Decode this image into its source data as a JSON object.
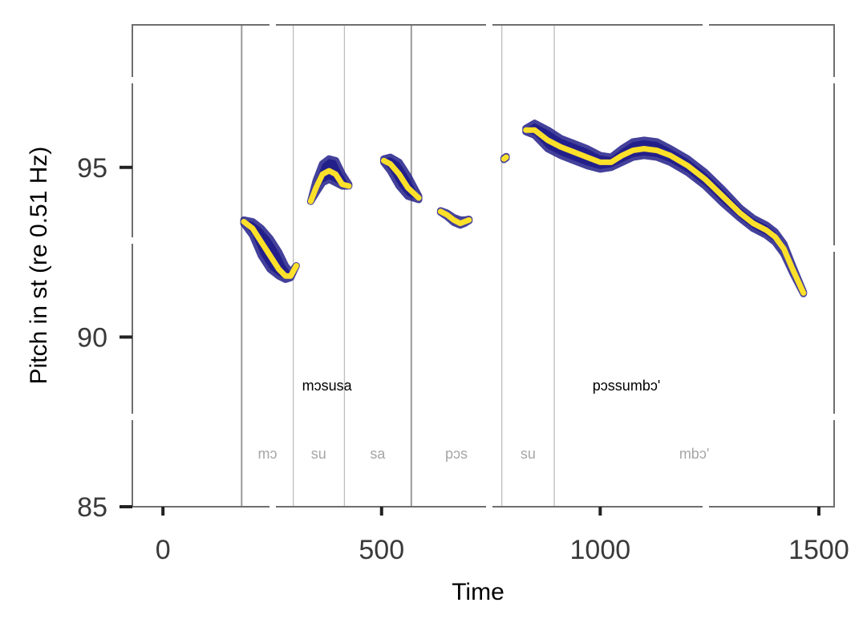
{
  "chart_data": {
    "type": "line",
    "xlabel": "Time",
    "ylabel": "Pitch in st (re 0.51 Hz)",
    "xlim": [
      -70,
      1535
    ],
    "ylim": [
      85,
      99.2
    ],
    "x_ticks": [
      0,
      500,
      1000,
      1500
    ],
    "y_ticks": [
      85,
      90,
      95
    ],
    "grid": false,
    "colors": {
      "band": "#23208a",
      "line": "#fde02a",
      "boundary": "#bdbdbd",
      "word_boundary": "#9a9a9a",
      "frame": "#6e6e6e"
    },
    "word_boundaries": [
      180,
      568
    ],
    "syllable_boundaries": [
      180,
      298,
      415,
      568,
      775,
      895
    ],
    "words": [
      {
        "label": "mɔsusa",
        "x": 375
      },
      {
        "label": "pɔssumbɔ'",
        "x": 1060
      }
    ],
    "syllables": [
      {
        "label": "mɔ",
        "x": 239
      },
      {
        "label": "su",
        "x": 356
      },
      {
        "label": "sa",
        "x": 491
      },
      {
        "label": "pɔs",
        "x": 671
      },
      {
        "label": "su",
        "x": 835
      },
      {
        "label": "mbɔ'",
        "x": 1215
      }
    ],
    "series": [
      {
        "points": [
          [
            185,
            93.4
          ],
          [
            205,
            93.2
          ],
          [
            225,
            92.8
          ],
          [
            245,
            92.4
          ],
          [
            265,
            92.0
          ],
          [
            280,
            91.8
          ],
          [
            292,
            91.8
          ],
          [
            305,
            92.1
          ]
        ],
        "upper": [
          [
            185,
            93.45
          ],
          [
            205,
            93.4
          ],
          [
            225,
            93.2
          ],
          [
            245,
            92.9
          ],
          [
            265,
            92.5
          ],
          [
            280,
            92.1
          ],
          [
            292,
            91.9
          ],
          [
            305,
            92.1
          ]
        ],
        "lower": [
          [
            185,
            93.35
          ],
          [
            205,
            93.0
          ],
          [
            225,
            92.4
          ],
          [
            245,
            92.0
          ],
          [
            265,
            91.8
          ],
          [
            280,
            91.7
          ],
          [
            292,
            91.75
          ],
          [
            305,
            92.1
          ]
        ]
      },
      {
        "points": [
          [
            338,
            94.0
          ],
          [
            350,
            94.4
          ],
          [
            365,
            94.8
          ],
          [
            380,
            94.9
          ],
          [
            395,
            94.8
          ],
          [
            410,
            94.5
          ],
          [
            425,
            94.45
          ]
        ],
        "upper": [
          [
            338,
            94.0
          ],
          [
            350,
            94.6
          ],
          [
            365,
            95.1
          ],
          [
            380,
            95.25
          ],
          [
            395,
            95.2
          ],
          [
            410,
            94.8
          ],
          [
            425,
            94.5
          ]
        ],
        "lower": [
          [
            338,
            94.0
          ],
          [
            350,
            94.25
          ],
          [
            365,
            94.55
          ],
          [
            380,
            94.65
          ],
          [
            395,
            94.55
          ],
          [
            410,
            94.45
          ],
          [
            425,
            94.45
          ]
        ]
      },
      {
        "points": [
          [
            505,
            95.2
          ],
          [
            520,
            95.1
          ],
          [
            540,
            94.8
          ],
          [
            560,
            94.4
          ],
          [
            585,
            94.1
          ]
        ],
        "upper": [
          [
            505,
            95.25
          ],
          [
            520,
            95.3
          ],
          [
            540,
            95.15
          ],
          [
            560,
            94.75
          ],
          [
            585,
            94.15
          ]
        ],
        "lower": [
          [
            505,
            95.15
          ],
          [
            520,
            94.9
          ],
          [
            540,
            94.45
          ],
          [
            560,
            94.15
          ],
          [
            585,
            94.05
          ]
        ]
      },
      {
        "points": [
          [
            635,
            93.7
          ],
          [
            650,
            93.6
          ],
          [
            665,
            93.45
          ],
          [
            680,
            93.35
          ],
          [
            690,
            93.4
          ],
          [
            700,
            93.45
          ]
        ],
        "upper": [
          [
            635,
            93.72
          ],
          [
            650,
            93.65
          ],
          [
            665,
            93.52
          ],
          [
            680,
            93.45
          ],
          [
            690,
            93.45
          ],
          [
            700,
            93.47
          ]
        ],
        "lower": [
          [
            635,
            93.68
          ],
          [
            650,
            93.55
          ],
          [
            665,
            93.38
          ],
          [
            680,
            93.3
          ],
          [
            690,
            93.35
          ],
          [
            700,
            93.43
          ]
        ]
      },
      {
        "points": [
          [
            780,
            95.25
          ],
          [
            785,
            95.3
          ]
        ],
        "upper": [
          [
            780,
            95.27
          ],
          [
            785,
            95.32
          ]
        ],
        "lower": [
          [
            780,
            95.23
          ],
          [
            785,
            95.28
          ]
        ]
      },
      {
        "points": [
          [
            830,
            96.1
          ],
          [
            850,
            96.1
          ],
          [
            880,
            95.8
          ],
          [
            910,
            95.6
          ],
          [
            940,
            95.45
          ],
          [
            970,
            95.3
          ],
          [
            1000,
            95.15
          ],
          [
            1025,
            95.15
          ],
          [
            1050,
            95.35
          ],
          [
            1075,
            95.5
          ],
          [
            1100,
            95.55
          ],
          [
            1130,
            95.5
          ],
          [
            1160,
            95.35
          ],
          [
            1200,
            95.05
          ],
          [
            1240,
            94.65
          ],
          [
            1280,
            94.15
          ],
          [
            1320,
            93.65
          ],
          [
            1350,
            93.35
          ],
          [
            1380,
            93.15
          ],
          [
            1400,
            92.95
          ],
          [
            1420,
            92.6
          ],
          [
            1440,
            92.0
          ],
          [
            1465,
            91.3
          ]
        ],
        "upper": [
          [
            830,
            96.15
          ],
          [
            850,
            96.3
          ],
          [
            880,
            96.1
          ],
          [
            910,
            95.85
          ],
          [
            940,
            95.7
          ],
          [
            970,
            95.55
          ],
          [
            1000,
            95.35
          ],
          [
            1025,
            95.3
          ],
          [
            1050,
            95.55
          ],
          [
            1075,
            95.75
          ],
          [
            1100,
            95.8
          ],
          [
            1130,
            95.75
          ],
          [
            1160,
            95.55
          ],
          [
            1200,
            95.25
          ],
          [
            1240,
            94.85
          ],
          [
            1280,
            94.35
          ],
          [
            1320,
            93.8
          ],
          [
            1350,
            93.5
          ],
          [
            1380,
            93.3
          ],
          [
            1400,
            93.1
          ],
          [
            1420,
            92.75
          ],
          [
            1440,
            92.1
          ],
          [
            1465,
            91.32
          ]
        ],
        "lower": [
          [
            830,
            96.05
          ],
          [
            850,
            95.95
          ],
          [
            880,
            95.55
          ],
          [
            910,
            95.35
          ],
          [
            940,
            95.2
          ],
          [
            970,
            95.05
          ],
          [
            1000,
            94.95
          ],
          [
            1025,
            95.0
          ],
          [
            1050,
            95.15
          ],
          [
            1075,
            95.3
          ],
          [
            1100,
            95.35
          ],
          [
            1130,
            95.3
          ],
          [
            1160,
            95.15
          ],
          [
            1200,
            94.85
          ],
          [
            1240,
            94.45
          ],
          [
            1280,
            93.95
          ],
          [
            1320,
            93.5
          ],
          [
            1350,
            93.2
          ],
          [
            1380,
            93.0
          ],
          [
            1400,
            92.8
          ],
          [
            1420,
            92.45
          ],
          [
            1440,
            91.9
          ],
          [
            1465,
            91.28
          ]
        ]
      }
    ]
  }
}
